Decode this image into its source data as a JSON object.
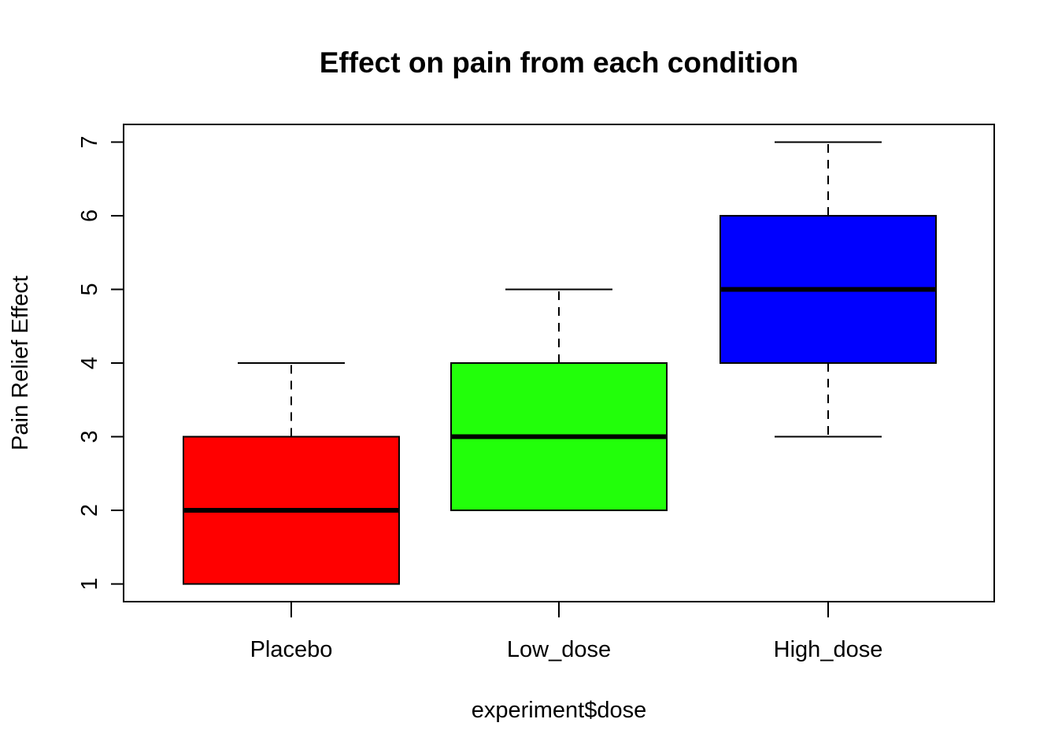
{
  "chart_data": {
    "type": "boxplot",
    "title": "Effect on pain from each condition",
    "xlabel": "experiment$dose",
    "ylabel": "Pain Relief Effect",
    "categories": [
      "Placebo",
      "Low_dose",
      "High_dose"
    ],
    "colors": [
      "#ff0000",
      "#22ff0a",
      "#0000ff"
    ],
    "boxes": [
      {
        "category": "Placebo",
        "min": 1,
        "q1": 1,
        "median": 2,
        "q3": 3,
        "max": 4
      },
      {
        "category": "Low_dose",
        "min": 2,
        "q1": 2,
        "median": 3,
        "q3": 4,
        "max": 5
      },
      {
        "category": "High_dose",
        "min": 3,
        "q1": 4,
        "median": 5,
        "q3": 6,
        "max": 7
      }
    ],
    "yticks": [
      1,
      2,
      3,
      4,
      5,
      6,
      7
    ],
    "ylim": [
      0.76,
      7.24
    ],
    "grid": false
  }
}
